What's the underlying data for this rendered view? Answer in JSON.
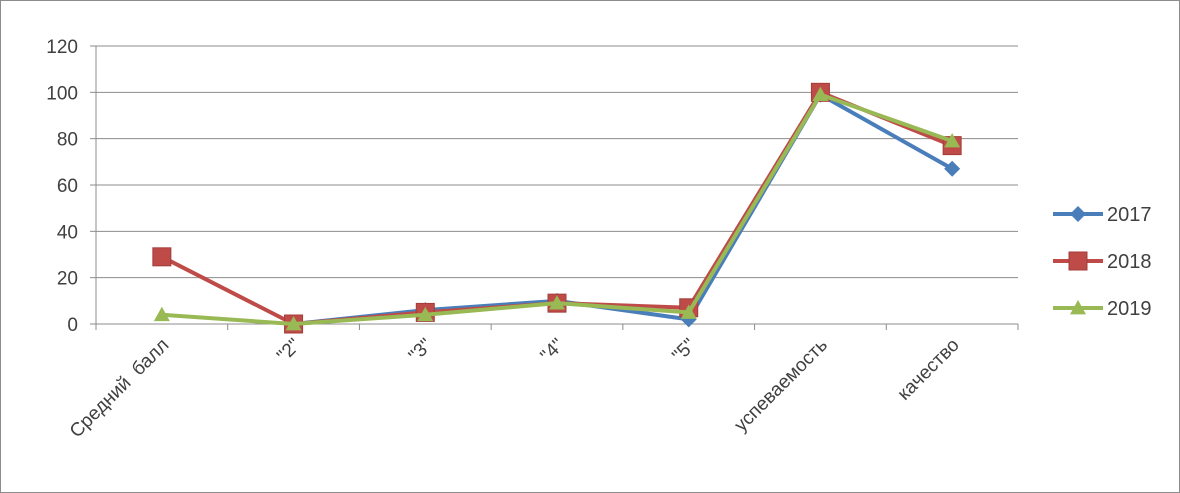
{
  "chart_data": {
    "type": "line",
    "title": "",
    "xlabel": "",
    "ylabel": "",
    "categories": [
      "Средний  балл",
      "\"2\"",
      "\"3\"",
      "\"4\"",
      "\"5\"",
      "успеваемость",
      "качество"
    ],
    "y_ticks": [
      "0",
      "20",
      "40",
      "60",
      "80",
      "100",
      "120"
    ],
    "ylim": [
      0,
      120
    ],
    "grid": true,
    "legend": "right",
    "series": [
      {
        "name": "2017",
        "color": "#4a7ebb",
        "marker": "diamond",
        "values": [
          null,
          0,
          6,
          10,
          2,
          99,
          67
        ]
      },
      {
        "name": "2018",
        "color": "#be4b48",
        "marker": "square",
        "values": [
          29,
          0,
          5,
          9,
          7,
          100,
          77
        ]
      },
      {
        "name": "2019",
        "color": "#98b954",
        "marker": "triangle",
        "values": [
          4,
          0,
          4,
          9,
          5,
          99,
          79
        ]
      }
    ]
  }
}
